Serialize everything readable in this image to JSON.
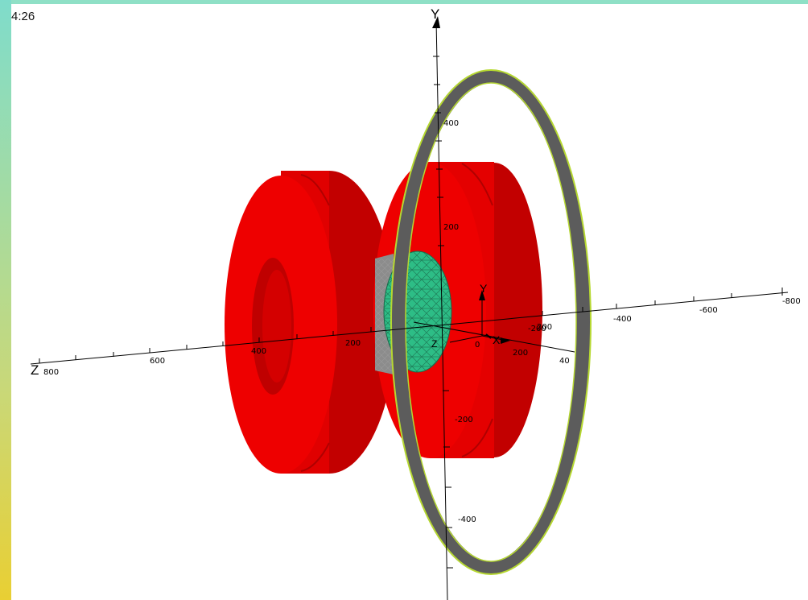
{
  "viewer": {
    "time_label": "4:26",
    "background": "#ffffff",
    "frame_gradient": [
      "#7fdccb",
      "#a6dba0",
      "#c9d878",
      "#e9cf33"
    ]
  },
  "axes": {
    "y_name": "Y",
    "z_name": "Z",
    "origin_y_name": "Y",
    "origin_x_name": "X",
    "origin_z_name": "Z",
    "z_ticks": [
      "800",
      "600",
      "400",
      "200"
    ],
    "x_ticks": [
      "-200",
      "-400",
      "-600",
      "-800"
    ],
    "y_ticks": [
      "400",
      "200",
      "-200",
      "-400"
    ],
    "small_ticks": [
      "0",
      "200",
      "200",
      "40"
    ]
  },
  "objects": {
    "coils": {
      "name": "red-coil",
      "color": "#ee0000",
      "shade": "#c20000"
    },
    "ring": {
      "name": "outer-ring",
      "color": "#5c5c5c",
      "accent": "#b6d831"
    },
    "core": {
      "name": "mesh-core",
      "color": "#2dbd86",
      "mesh": "#6a6a6a"
    }
  }
}
